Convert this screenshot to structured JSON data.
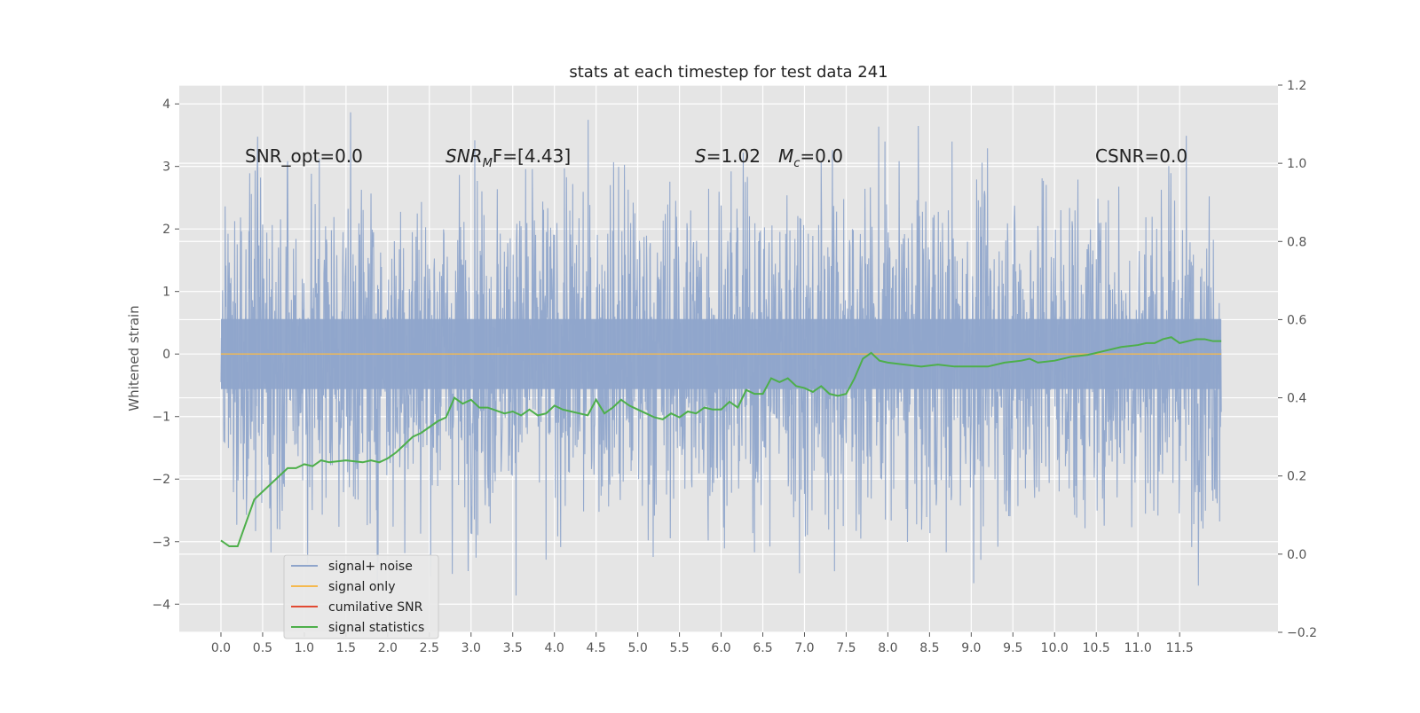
{
  "chart_data": {
    "type": "line",
    "title": "stats at each timestep for test data 241",
    "xlabel": "",
    "ylabel": "Whitened strain",
    "y2label": "",
    "xlim": [
      -0.5,
      12.68
    ],
    "ylim": [
      -4.45,
      4.3
    ],
    "y2lim": [
      -0.2,
      1.2
    ],
    "grid": true,
    "x_ticks": [
      "0.0",
      "0.5",
      "1.0",
      "1.5",
      "2.0",
      "2.5",
      "3.0",
      "3.5",
      "4.0",
      "4.5",
      "5.0",
      "5.5",
      "6.0",
      "6.5",
      "7.0",
      "7.5",
      "8.0",
      "8.5",
      "9.0",
      "9.5",
      "10.0",
      "10.5",
      "11.0",
      "11.5"
    ],
    "y_ticks": [
      "4",
      "3",
      "2",
      "1",
      "0",
      "−1",
      "−2",
      "−3",
      "−4"
    ],
    "y2_ticks": [
      "1.2",
      "1.0",
      "0.8",
      "0.6",
      "0.4",
      "0.2",
      "0.0",
      "−0.2"
    ],
    "annotations": {
      "snr_opt": "SNR_opt=0.0",
      "snr_mf_sym": "SNR",
      "snr_mf_sub": "M",
      "snr_mf_rest": "F=[4.43]",
      "s_sym": "S",
      "s_rest": "=1.02",
      "mc_sym": "M",
      "mc_sub": "c",
      "mc_rest": "=0.0",
      "csnr": "CSNR=0.0"
    },
    "legend": {
      "placement": "lower-left",
      "entries": [
        "signal+ noise",
        "signal only",
        "cumilative SNR",
        "signal statistics"
      ]
    },
    "colors": {
      "noise": "#8fa5cb",
      "signal_only": "#f5b94f",
      "cumulative_snr": "#e24a33",
      "statistics": "#4daf4a",
      "plot_bg": "#e5e5e5",
      "grid": "#ffffff"
    },
    "series": [
      {
        "name": "signal+ noise",
        "axis": "left",
        "x_range": [
          0.0,
          12.0
        ],
        "typical_range": [
          -1.6,
          1.6
        ],
        "extremes": [
          -4.05,
          3.9
        ]
      },
      {
        "name": "signal only",
        "axis": "left",
        "x": [
          0.0,
          12.0
        ],
        "y": [
          0.0,
          0.0
        ]
      },
      {
        "name": "signal statistics",
        "axis": "right",
        "x": [
          0.0,
          0.1,
          0.2,
          0.3,
          0.4,
          0.5,
          0.6,
          0.7,
          0.8,
          0.9,
          1.0,
          1.1,
          1.2,
          1.3,
          1.5,
          1.7,
          1.8,
          1.9,
          2.0,
          2.1,
          2.2,
          2.3,
          2.4,
          2.5,
          2.6,
          2.7,
          2.8,
          2.9,
          3.0,
          3.1,
          3.2,
          3.4,
          3.5,
          3.6,
          3.7,
          3.8,
          3.9,
          4.0,
          4.1,
          4.2,
          4.3,
          4.4,
          4.5,
          4.6,
          4.7,
          4.8,
          4.9,
          5.0,
          5.1,
          5.2,
          5.3,
          5.4,
          5.5,
          5.6,
          5.7,
          5.8,
          5.9,
          6.0,
          6.1,
          6.2,
          6.3,
          6.4,
          6.5,
          6.6,
          6.7,
          6.8,
          6.9,
          7.0,
          7.1,
          7.2,
          7.3,
          7.4,
          7.5,
          7.6,
          7.7,
          7.8,
          7.9,
          8.0,
          8.2,
          8.4,
          8.6,
          8.8,
          9.0,
          9.2,
          9.4,
          9.6,
          9.7,
          9.8,
          10.0,
          10.2,
          10.4,
          10.6,
          10.8,
          11.0,
          11.1,
          11.2,
          11.3,
          11.4,
          11.5,
          11.6,
          11.7,
          11.8,
          11.9,
          12.0
        ],
        "y": [
          0.035,
          0.02,
          0.02,
          0.08,
          0.14,
          0.16,
          0.18,
          0.2,
          0.22,
          0.22,
          0.23,
          0.225,
          0.24,
          0.235,
          0.24,
          0.235,
          0.24,
          0.235,
          0.245,
          0.26,
          0.28,
          0.3,
          0.31,
          0.325,
          0.34,
          0.35,
          0.4,
          0.385,
          0.395,
          0.375,
          0.375,
          0.36,
          0.365,
          0.355,
          0.37,
          0.355,
          0.36,
          0.38,
          0.37,
          0.365,
          0.36,
          0.355,
          0.395,
          0.36,
          0.375,
          0.395,
          0.38,
          0.37,
          0.36,
          0.35,
          0.345,
          0.36,
          0.35,
          0.365,
          0.36,
          0.375,
          0.37,
          0.37,
          0.39,
          0.375,
          0.42,
          0.41,
          0.41,
          0.45,
          0.44,
          0.45,
          0.43,
          0.425,
          0.415,
          0.43,
          0.41,
          0.405,
          0.41,
          0.45,
          0.5,
          0.515,
          0.495,
          0.49,
          0.485,
          0.48,
          0.485,
          0.48,
          0.48,
          0.48,
          0.49,
          0.495,
          0.5,
          0.49,
          0.495,
          0.505,
          0.51,
          0.52,
          0.53,
          0.535,
          0.54,
          0.54,
          0.55,
          0.555,
          0.54,
          0.545,
          0.55,
          0.55,
          0.545,
          0.545
        ]
      }
    ]
  }
}
